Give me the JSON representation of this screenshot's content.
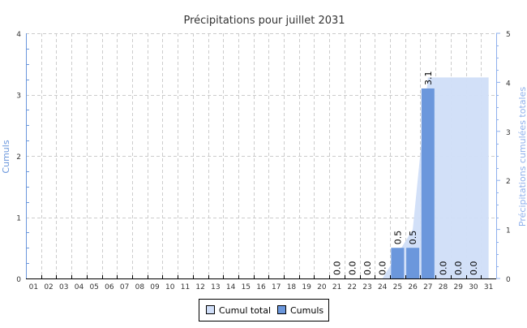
{
  "chart_data": {
    "type": "bar",
    "title": "Précipitations pour juillet 2031",
    "ylabel": "Cumuls",
    "y2label": "Précipitations cumulées totales",
    "ylim": [
      0,
      4
    ],
    "y2lim": [
      0,
      5
    ],
    "yticks": [
      "0",
      "1",
      "2",
      "3",
      "4"
    ],
    "y2ticks": [
      "0",
      "1",
      "2",
      "3",
      "4",
      "5"
    ],
    "grid": true,
    "legend_placement": "bottom",
    "categories": [
      "01",
      "02",
      "03",
      "04",
      "05",
      "06",
      "07",
      "08",
      "09",
      "10",
      "11",
      "12",
      "13",
      "14",
      "15",
      "16",
      "17",
      "18",
      "19",
      "20",
      "21",
      "22",
      "23",
      "24",
      "25",
      "26",
      "27",
      "28",
      "29",
      "30",
      "31"
    ],
    "series": [
      {
        "name": "Cumuls",
        "type": "bar",
        "axis": "left",
        "color": "#6b97dc",
        "values": [
          null,
          null,
          null,
          null,
          null,
          null,
          null,
          null,
          null,
          null,
          null,
          null,
          null,
          null,
          null,
          null,
          null,
          null,
          null,
          null,
          0.0,
          0.0,
          0.0,
          0.0,
          0.5,
          0.5,
          3.1,
          0.0,
          0.0,
          0.0,
          null
        ],
        "labels": [
          "",
          "",
          "",
          "",
          "",
          "",
          "",
          "",
          "",
          "",
          "",
          "",
          "",
          "",
          "",
          "",
          "",
          "",
          "",
          "",
          "0.0",
          "0.0",
          "0.0",
          "0.0",
          "0.5",
          "0.5",
          "3.1",
          "0.0",
          "0.0",
          "0.0",
          ""
        ]
      },
      {
        "name": "Cumul total",
        "type": "area",
        "axis": "right",
        "color": "#d0def8",
        "values": [
          null,
          null,
          null,
          null,
          null,
          null,
          null,
          null,
          null,
          null,
          null,
          null,
          null,
          null,
          null,
          null,
          null,
          null,
          null,
          null,
          null,
          null,
          null,
          0.0,
          0.5,
          1.0,
          4.1,
          4.1,
          4.1,
          4.1,
          4.1
        ]
      }
    ]
  },
  "legend": {
    "items": [
      {
        "label": "Cumul total",
        "color": "#d0def8"
      },
      {
        "label": "Cumuls",
        "color": "#6b97dc"
      }
    ]
  }
}
